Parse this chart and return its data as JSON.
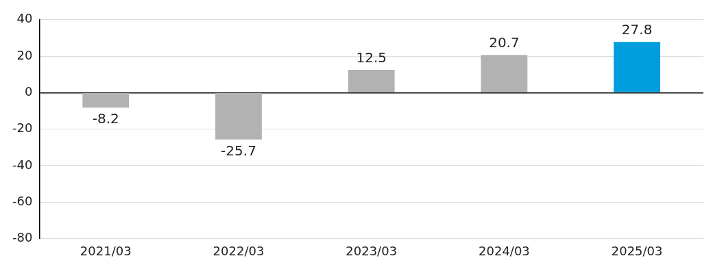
{
  "chart_data": {
    "type": "bar",
    "categories": [
      "2021/03",
      "2022/03",
      "2023/03",
      "2024/03",
      "2025/03"
    ],
    "values": [
      -8.2,
      -25.7,
      12.5,
      20.7,
      27.8
    ],
    "colors": [
      "#b2b2b2",
      "#b2b2b2",
      "#b2b2b2",
      "#b2b2b2",
      "#009ddc"
    ],
    "ylim": [
      -80,
      40
    ],
    "yticks": [
      -80,
      -60,
      -40,
      -20,
      0,
      20,
      40
    ],
    "grid": "y",
    "data_labels": true,
    "legend": false
  }
}
